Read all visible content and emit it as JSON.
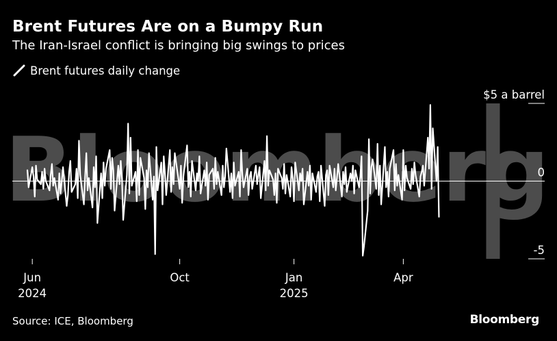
{
  "header": {
    "title": "Brent Futures Are on a Bumpy Run",
    "subtitle": "The Iran-Israel conflict is bringing big swings to prices"
  },
  "footer": {
    "source": "Source: ICE, Bloomberg",
    "brand": "Bloomberg"
  },
  "watermark": "Bloomberg",
  "colors": {
    "background": "#000000",
    "line": "#ffffff",
    "highlight": "#4a4a4a",
    "zero_line": "#ffffff"
  },
  "chart_data": {
    "type": "line",
    "title": "Brent Futures Are on a Bumpy Run",
    "subtitle": "The Iran-Israel conflict is bringing big swings to prices",
    "ylabel": "",
    "y_unit_label": "$5 a barrel",
    "ylim": [
      -5,
      5
    ],
    "grid": false,
    "legend_position": "top-left",
    "series": [
      {
        "name": "Brent futures daily change",
        "color": "#ffffff",
        "start_date": "2024-05-30",
        "frequency": "business-day",
        "values": [
          0.7,
          -0.4,
          0.9,
          0.3,
          -1.0,
          1.0,
          0.1,
          -0.2,
          0.6,
          -0.5,
          0.8,
          0.0,
          -0.6,
          0.4,
          1.1,
          -0.3,
          0.2,
          -1.2,
          0.5,
          -0.8,
          0.0,
          0.9,
          -1.6,
          -0.9,
          0.6,
          1.3,
          -0.7,
          -0.2,
          0.8,
          -1.1,
          2.6,
          0.4,
          -1.5,
          0.3,
          1.8,
          -0.6,
          0.2,
          -1.7,
          0.9,
          -0.4,
          1.6,
          -2.7,
          0.5,
          -1.1,
          1.2,
          -0.3,
          0.8,
          2.0,
          -0.5,
          1.5,
          0.7,
          -1.9,
          1.0,
          -0.2,
          1.3,
          0.1,
          -2.5,
          0.4,
          3.7,
          -0.8,
          2.8,
          -0.3,
          0.6,
          -1.3,
          2.0,
          -0.9,
          1.5,
          0.2,
          -1.8,
          0.7,
          -0.4,
          1.8,
          -1.2,
          0.3,
          -4.7,
          2.2,
          -0.6,
          1.2,
          -1.5,
          1.6,
          0.5,
          -0.9,
          2.0,
          -0.7,
          0.9,
          -0.2,
          1.8,
          0.1,
          -0.5,
          1.0,
          -1.4,
          0.3,
          2.3,
          -0.4,
          0.6,
          -1.0,
          1.3,
          -0.6,
          0.5,
          0.0,
          1.6,
          -0.8,
          0.7,
          -0.3,
          1.2,
          -1.2,
          0.4,
          0.8,
          -0.5,
          1.5,
          -0.2,
          0.6,
          -0.9,
          1.0,
          -0.4,
          0.3,
          2.1,
          -0.7,
          0.5,
          -1.1,
          1.2,
          -0.3,
          0.6,
          -1.0,
          2.0,
          0.4,
          -0.4,
          0.8,
          -0.9,
          0.3,
          0.6,
          -0.5,
          1.0,
          -0.2,
          0.4,
          0.9,
          -1.1,
          1.3,
          -0.6,
          2.9,
          -0.3,
          0.7,
          0.1,
          -0.9,
          0.5,
          -1.4,
          0.8,
          0.2,
          -0.5,
          1.1,
          -0.8,
          0.4,
          -1.0,
          0.9,
          0.2,
          -1.3,
          1.2,
          -0.6,
          0.5,
          0.0,
          0.8,
          -1.5,
          0.6,
          -0.3,
          1.0,
          -1.2,
          0.5,
          -0.7,
          0.3,
          0.6,
          -1.3,
          1.0,
          -1.6,
          0.4,
          0.7,
          -0.9,
          1.0,
          -0.4,
          0.8,
          -0.6,
          0.2,
          1.1,
          -1.0,
          0.6,
          -0.2,
          0.9,
          -0.7,
          0.5,
          0.0,
          1.0,
          -0.8,
          0.7,
          -0.4,
          0.3,
          1.6,
          -4.8,
          -4.2,
          -1.9,
          2.7,
          -0.8,
          0.9,
          1.4,
          -0.5,
          2.4,
          -0.9,
          1.0,
          -1.5,
          2.2,
          -0.4,
          0.6,
          -1.0,
          0.8,
          2.0,
          -0.6,
          1.1,
          -0.3,
          0.4,
          -1.2,
          2.0,
          -0.6,
          1.0,
          0.2,
          -0.5,
          0.8,
          -0.2,
          1.2,
          0.4,
          -1.0,
          0.3,
          0.6,
          1.0,
          -0.3,
          2.8,
          0.8,
          4.9,
          -0.5,
          3.4,
          0.0,
          2.2,
          -2.3
        ]
      }
    ],
    "x_ticks": [
      {
        "date": "2024-06-03",
        "label": "Jun",
        "sublabel": "2024"
      },
      {
        "date": "2024-10-01",
        "label": "Oct",
        "sublabel": ""
      },
      {
        "date": "2025-01-02",
        "label": "Jan",
        "sublabel": "2025"
      },
      {
        "date": "2025-04-01",
        "label": "Apr",
        "sublabel": ""
      }
    ],
    "y_ticks": [
      {
        "value": 5,
        "label": "$5 a barrel"
      },
      {
        "value": 0,
        "label": "0"
      },
      {
        "value": -5,
        "label": "-5"
      }
    ],
    "highlight_date": "2025-06-13",
    "x_start": "2024-05-30",
    "x_end": "2025-06-25"
  }
}
